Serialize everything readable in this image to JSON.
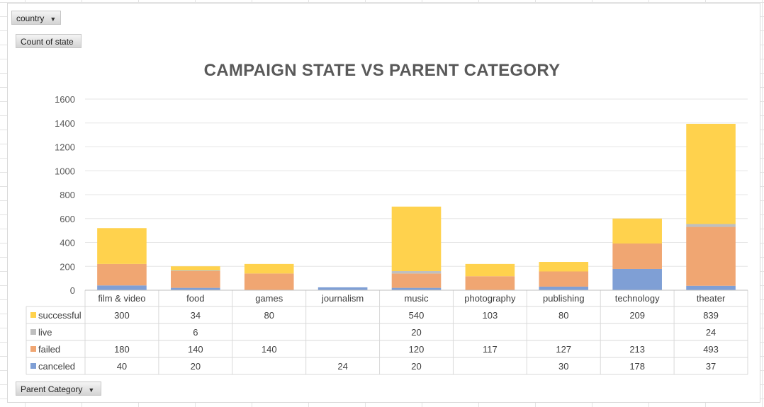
{
  "pivot": {
    "country_label": "country",
    "value_label": "Count of state",
    "axis_label": "Parent Category"
  },
  "chart_data": {
    "type": "bar",
    "stacked": true,
    "title": "CAMPAIGN STATE VS PARENT CATEGORY",
    "xlabel": "",
    "ylabel": "",
    "ylim": [
      0,
      1600
    ],
    "yticks": [
      0,
      200,
      400,
      600,
      800,
      1000,
      1200,
      1400,
      1600
    ],
    "grid": true,
    "legend": "data table",
    "categories": [
      "film & video",
      "food",
      "games",
      "journalism",
      "music",
      "photography",
      "publishing",
      "technology",
      "theater"
    ],
    "series": [
      {
        "name": "canceled",
        "color": "#7F9FD5",
        "values": [
          40,
          20,
          null,
          24,
          20,
          null,
          30,
          178,
          37
        ]
      },
      {
        "name": "failed",
        "color": "#F0A672",
        "values": [
          180,
          140,
          140,
          null,
          120,
          117,
          127,
          213,
          493
        ]
      },
      {
        "name": "live",
        "color": "#BFBFBF",
        "values": [
          null,
          6,
          null,
          null,
          20,
          null,
          null,
          null,
          24
        ]
      },
      {
        "name": "successful",
        "color": "#FFD24D",
        "values": [
          300,
          34,
          80,
          null,
          540,
          103,
          80,
          209,
          839
        ]
      }
    ]
  }
}
